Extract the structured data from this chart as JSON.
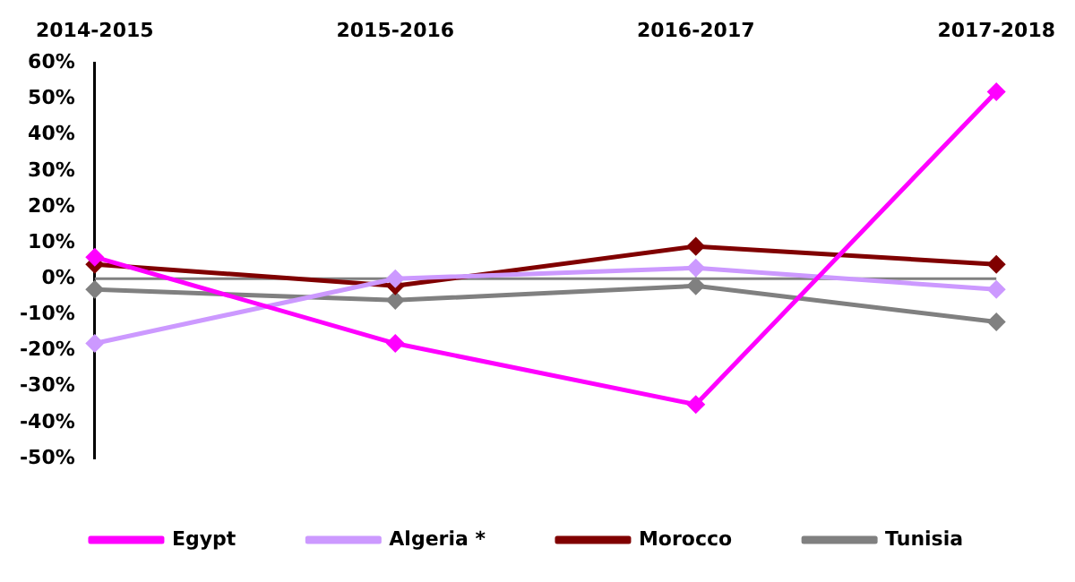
{
  "chart_data": {
    "type": "line",
    "categories": [
      "2014-2015",
      "2015-2016",
      "2016-2017",
      "2017-2018"
    ],
    "series": [
      {
        "name": "Egypt",
        "color": "#ff00ff",
        "values": [
          6,
          -18,
          -35,
          52
        ]
      },
      {
        "name": "Algeria *",
        "color": "#cc99ff",
        "values": [
          -18,
          0,
          3,
          -3
        ]
      },
      {
        "name": "Morocco",
        "color": "#800000",
        "values": [
          4,
          -2,
          9,
          4
        ]
      },
      {
        "name": "Tunisia",
        "color": "#808080",
        "values": [
          -3,
          -6,
          -2,
          -12
        ]
      }
    ],
    "ylim": [
      -50,
      60
    ],
    "yticks": [
      {
        "value": -50,
        "label": "-50%"
      },
      {
        "value": -40,
        "label": "-40%"
      },
      {
        "value": -30,
        "label": "-30%"
      },
      {
        "value": -20,
        "label": "-20%"
      },
      {
        "value": -10,
        "label": "-10%"
      },
      {
        "value": 0,
        "label": "0%"
      },
      {
        "value": 10,
        "label": "10%"
      },
      {
        "value": 20,
        "label": "20%"
      },
      {
        "value": 30,
        "label": "30%"
      },
      {
        "value": 40,
        "label": "40%"
      },
      {
        "value": 50,
        "label": "50%"
      },
      {
        "value": 60,
        "label": "60%"
      }
    ],
    "ref_lines": [
      {
        "axis": "y",
        "value": 0,
        "color": "#808080"
      }
    ],
    "grid": false,
    "legend": "bottom",
    "marker": "diamond",
    "line_style": "solid"
  }
}
